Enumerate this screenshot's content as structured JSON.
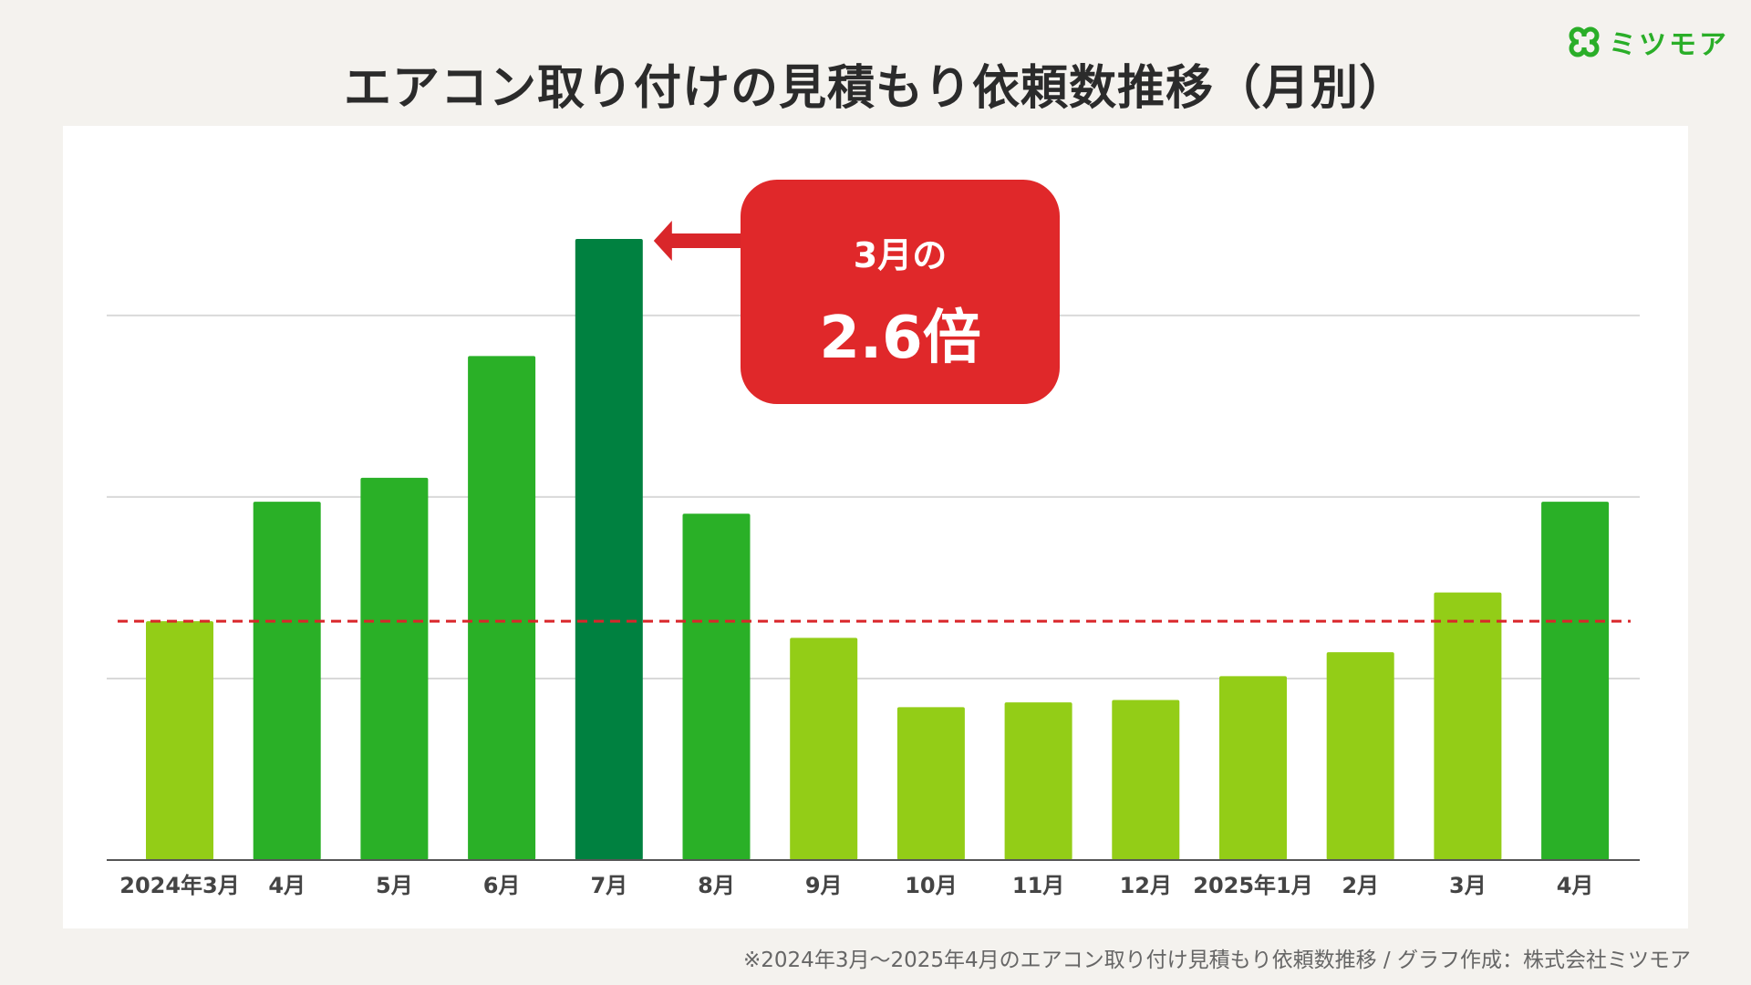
{
  "title": "エアコン取り付けの見積もり依頼数推移（月別）",
  "logo": {
    "text": "ミツモア",
    "icon": "clover-logo-icon",
    "color": "#2aae28"
  },
  "callout": {
    "line1": "3月の",
    "line2": "2.6倍",
    "color": "#e0282a"
  },
  "source_note": "※2024年3月〜2025年4月のエアコン取り付け見積もり依頼数推移 / グラフ作成：株式会社ミツモア",
  "colors": {
    "light_green": "#93cd17",
    "green": "#2ab027",
    "dark_green": "#008140",
    "reference_line": "#d9262a",
    "gridline": "#d9d9d9",
    "axis": "#555555"
  },
  "chart_data": {
    "type": "bar",
    "categories": [
      "2024年3月",
      "4月",
      "5月",
      "6月",
      "7月",
      "8月",
      "9月",
      "10月",
      "11月",
      "12月",
      "2025年1月",
      "2月",
      "3月",
      "4月"
    ],
    "values": [
      1.0,
      1.5,
      1.6,
      2.11,
      2.6,
      1.45,
      0.93,
      0.64,
      0.66,
      0.67,
      0.77,
      0.87,
      1.12,
      1.5
    ],
    "value_unit": "relative to 2024年3月 (= 1.0)",
    "bar_colors": [
      "light_green",
      "green",
      "green",
      "green",
      "dark_green",
      "green",
      "light_green",
      "light_green",
      "light_green",
      "light_green",
      "light_green",
      "light_green",
      "light_green",
      "green"
    ],
    "reference_line": {
      "value": 1.0,
      "style": "dashed",
      "color": "reference_line"
    },
    "gridlines": [
      0.76,
      1.52,
      2.28
    ],
    "ylim": [
      0,
      2.6
    ],
    "y_tick_labels_shown": false,
    "xlabel": "",
    "ylabel": "",
    "annotation": {
      "target_category_index": 4,
      "text": "3月の 2.6倍"
    },
    "grid": true,
    "legend": "none"
  }
}
